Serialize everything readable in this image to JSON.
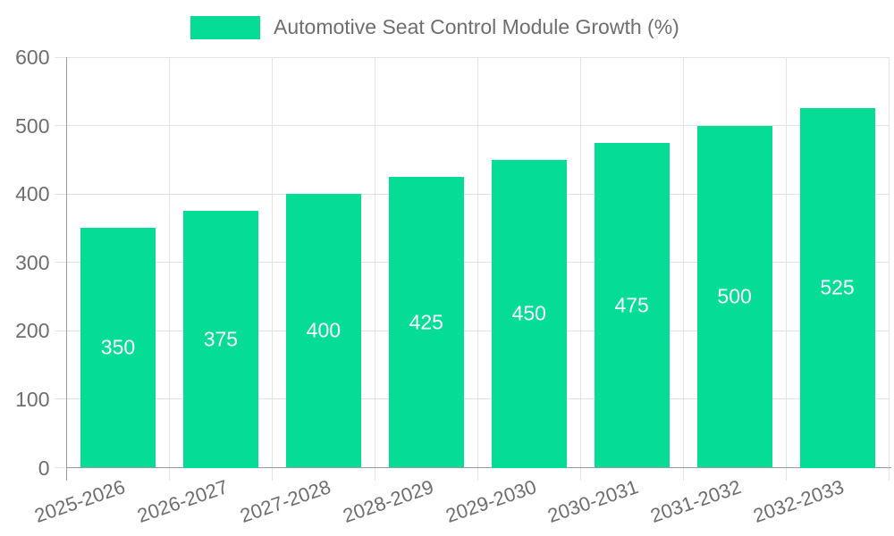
{
  "legend": {
    "label": "Automotive Seat Control Module Growth (%)"
  },
  "colors": {
    "bar": "#05DC95",
    "grid": "#e3e3e3",
    "axis": "#9a9a9a",
    "text": "#6e6e6e",
    "value_label": "#ffffff",
    "background": "#ffffff"
  },
  "chart_data": {
    "type": "bar",
    "title": "",
    "legend": "Automotive Seat Control Module Growth (%)",
    "legend_position": "top-center",
    "categories": [
      "2025-2026",
      "2026-2027",
      "2027-2028",
      "2028-2029",
      "2029-2030",
      "2030-2031",
      "2031-2032",
      "2032-2033"
    ],
    "values": [
      350,
      375,
      400,
      425,
      450,
      475,
      500,
      525
    ],
    "y_ticks": [
      0,
      100,
      200,
      300,
      400,
      500,
      600
    ],
    "ylim": [
      0,
      600
    ],
    "xlabel": "",
    "ylabel": "",
    "grid": true,
    "value_labels": "inside-middle",
    "bar_color": "#05DC95"
  }
}
